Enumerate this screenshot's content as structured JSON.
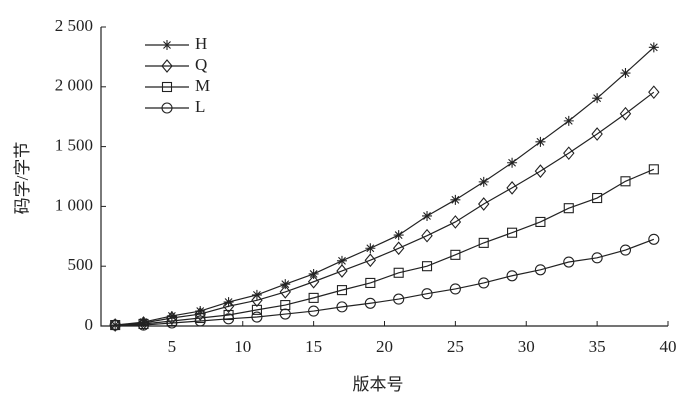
{
  "chart_data": {
    "type": "line",
    "x_label": "版本号",
    "y_label": "码字/字节",
    "x": [
      1,
      3,
      5,
      7,
      9,
      11,
      13,
      15,
      17,
      19,
      21,
      23,
      25,
      27,
      29,
      31,
      33,
      35,
      37,
      39
    ],
    "series": [
      {
        "name": "H",
        "color": "#222222",
        "marker": "star",
        "values": [
          8,
          33,
          84,
          125,
          200,
          260,
          350,
          435,
          545,
          650,
          760,
          920,
          1055,
          1205,
          1365,
          1540,
          1715,
          1905,
          2115,
          2330
        ]
      },
      {
        "name": "Q",
        "color": "#222222",
        "marker": "diamond",
        "values": [
          8,
          25,
          67,
          100,
          165,
          215,
          285,
          370,
          460,
          550,
          650,
          755,
          870,
          1020,
          1155,
          1295,
          1445,
          1605,
          1775,
          1955
        ]
      },
      {
        "name": "M",
        "color": "#222222",
        "marker": "square",
        "values": [
          8,
          17,
          42,
          67,
          92,
          135,
          175,
          235,
          300,
          360,
          445,
          500,
          595,
          695,
          780,
          870,
          985,
          1070,
          1210,
          1310
        ]
      },
      {
        "name": "L",
        "color": "#222222",
        "marker": "circle",
        "values": [
          8,
          8,
          25,
          42,
          60,
          75,
          100,
          125,
          160,
          190,
          225,
          270,
          310,
          360,
          420,
          470,
          535,
          570,
          635,
          725
        ]
      }
    ],
    "xlim": [
      0,
      40
    ],
    "xticks": [
      5,
      10,
      15,
      20,
      25,
      30,
      35,
      40
    ],
    "ylim": [
      0,
      2500
    ],
    "yticks": [
      0,
      500,
      {
        "value": 1000,
        "label": "1 000"
      },
      {
        "value": 1500,
        "label": "1 500"
      },
      {
        "value": 2000,
        "label": "2 000"
      },
      {
        "value": 2500,
        "label": "2 500"
      }
    ],
    "grid": false,
    "legend": "upper left"
  }
}
